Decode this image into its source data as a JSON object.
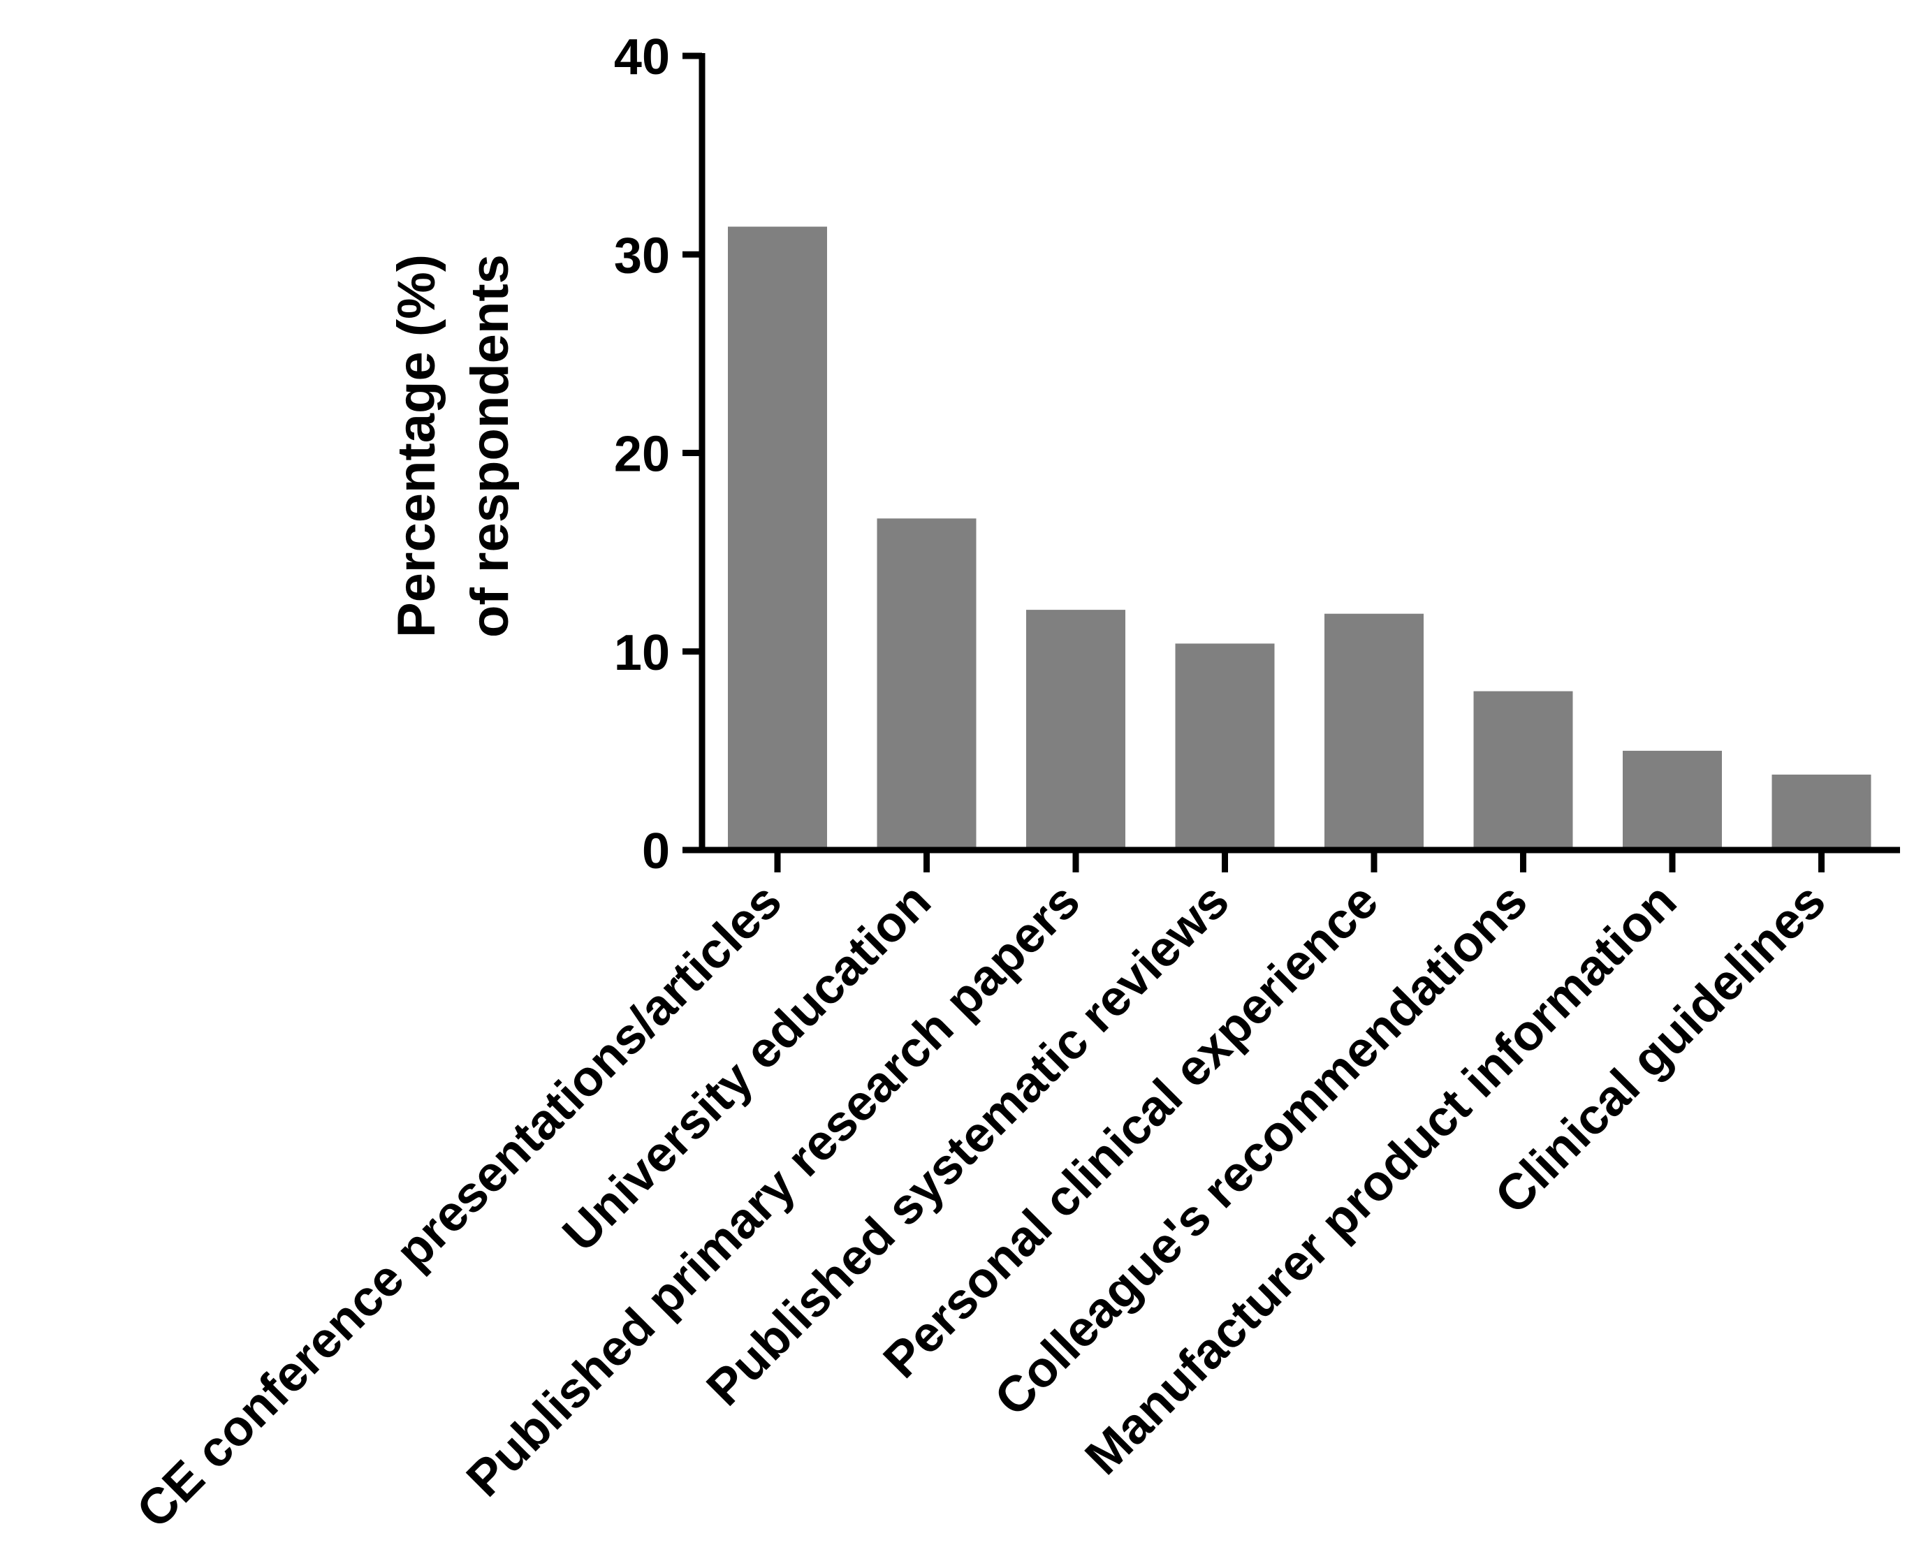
{
  "chart_data": {
    "type": "bar",
    "title": "",
    "xlabel": "",
    "ylabel_lines": [
      "Percentage (%)",
      "of respondents"
    ],
    "categories": [
      "CE conference presentations/articles",
      "University education",
      "Published primary research papers",
      "Published systematic reviews",
      "Personal clinical experience",
      "Colleague's recommendations",
      "Manufacturer product information",
      "Clinical guidelines"
    ],
    "values": [
      31.4,
      16.7,
      12.1,
      10.4,
      11.9,
      8.0,
      5.0,
      3.8
    ],
    "ylim": [
      0,
      40
    ],
    "yticks": [
      0,
      10,
      20,
      30,
      40
    ],
    "ytick_labels": [
      "0",
      "10",
      "20",
      "30",
      "40"
    ],
    "grid": false,
    "legend": "none",
    "bar_color": "#808080",
    "axis_color": "#000000"
  }
}
